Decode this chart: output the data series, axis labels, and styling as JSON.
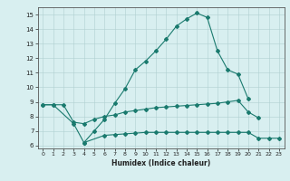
{
  "top_x": [
    0,
    1,
    3,
    4,
    5,
    6,
    7,
    8,
    9,
    10,
    11,
    12,
    13,
    14,
    15,
    16,
    17,
    18,
    19,
    20
  ],
  "top_y": [
    8.8,
    8.8,
    7.5,
    6.2,
    7.0,
    7.8,
    8.9,
    9.9,
    11.2,
    11.8,
    12.5,
    13.3,
    14.2,
    14.7,
    15.1,
    14.8,
    12.5,
    11.2,
    10.9,
    9.2
  ],
  "mid_x": [
    0,
    1,
    2,
    3,
    4,
    5,
    6,
    7,
    8,
    9,
    10,
    11,
    12,
    13,
    14,
    15,
    16,
    17,
    18,
    19,
    20,
    21
  ],
  "mid_y": [
    8.8,
    8.8,
    8.8,
    7.6,
    7.5,
    7.8,
    8.0,
    8.1,
    8.3,
    8.4,
    8.5,
    8.6,
    8.65,
    8.7,
    8.75,
    8.8,
    8.85,
    8.9,
    9.0,
    9.1,
    8.3,
    7.9
  ],
  "bot_x": [
    4,
    6,
    7,
    8,
    9,
    10,
    11,
    12,
    13,
    14,
    15,
    16,
    17,
    18,
    19,
    20,
    21,
    22,
    23
  ],
  "bot_y": [
    6.2,
    6.7,
    6.75,
    6.8,
    6.85,
    6.9,
    6.9,
    6.9,
    6.9,
    6.9,
    6.9,
    6.9,
    6.9,
    6.9,
    6.9,
    6.9,
    6.5,
    6.5,
    6.5
  ],
  "xlabel": "Humidex (Indice chaleur)",
  "ylim": [
    5.8,
    15.5
  ],
  "xlim": [
    -0.5,
    23.5
  ],
  "yticks": [
    6,
    7,
    8,
    9,
    10,
    11,
    12,
    13,
    14,
    15
  ],
  "xticks": [
    0,
    1,
    2,
    3,
    4,
    5,
    6,
    7,
    8,
    9,
    10,
    11,
    12,
    13,
    14,
    15,
    16,
    17,
    18,
    19,
    20,
    21,
    22,
    23
  ],
  "color": "#1a7a6e",
  "bg_color": "#d8eff0",
  "grid_color": "#b0d0d0"
}
